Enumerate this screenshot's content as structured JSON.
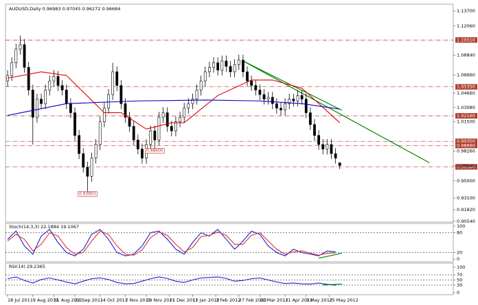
{
  "chart_data": [
    {
      "type": "candlestick",
      "title": "AUDUSD,Daily  0.96983 0.97045 0.96272 0.96684",
      "open": [
        1.06,
        1.066,
        1.08,
        1.095,
        1.1,
        1.075,
        1.05,
        1.02,
        1.04,
        1.035,
        1.05,
        1.06,
        1.065,
        1.055,
        1.05,
        1.035,
        1.025,
        1.0,
        0.98,
        0.965,
        0.955,
        0.975,
        0.99,
        1.015,
        1.03,
        1.045,
        1.07,
        1.055,
        1.035,
        1.02,
        1.01,
        0.995,
        0.985,
        0.975,
        0.99,
        1.005,
        0.995,
        1.02,
        1.025,
        1.01,
        1.005,
        1.015,
        1.02,
        1.03,
        1.035,
        1.04,
        1.05,
        1.06,
        1.07,
        1.075,
        1.08,
        1.072,
        1.082,
        1.076,
        1.07,
        1.078,
        1.083,
        1.07,
        1.06,
        1.055,
        1.05,
        1.045,
        1.04,
        1.042,
        1.035,
        1.03,
        1.028,
        1.035,
        1.04,
        1.038,
        1.044,
        1.04,
        1.025,
        1.012,
        1.0,
        0.99,
        0.985,
        0.99,
        0.98,
        0.96983
      ],
      "high": [
        1.072,
        1.086,
        1.101,
        1.11,
        1.106,
        1.081,
        1.056,
        1.046,
        1.046,
        1.056,
        1.066,
        1.072,
        1.071,
        1.061,
        1.056,
        1.041,
        1.031,
        1.006,
        0.986,
        0.971,
        0.981,
        0.996,
        1.021,
        1.036,
        1.051,
        1.08,
        1.076,
        1.061,
        1.041,
        1.026,
        1.016,
        1.001,
        0.991,
        0.996,
        1.011,
        1.011,
        1.026,
        1.031,
        1.031,
        1.016,
        1.021,
        1.026,
        1.036,
        1.041,
        1.046,
        1.056,
        1.066,
        1.076,
        1.081,
        1.086,
        1.086,
        1.088,
        1.088,
        1.082,
        1.084,
        1.089,
        1.089,
        1.076,
        1.066,
        1.061,
        1.056,
        1.051,
        1.048,
        1.048,
        1.041,
        1.036,
        1.041,
        1.046,
        1.046,
        1.05,
        1.05,
        1.046,
        1.031,
        1.018,
        1.006,
        0.996,
        0.996,
        0.996,
        0.986,
        0.97045
      ],
      "low": [
        1.054,
        1.06,
        1.074,
        1.089,
        1.069,
        1.044,
        0.99,
        1.014,
        1.029,
        1.029,
        1.044,
        1.054,
        1.049,
        1.044,
        1.029,
        1.019,
        0.994,
        0.974,
        0.959,
        0.9385,
        0.949,
        0.969,
        0.984,
        1.009,
        1.024,
        1.039,
        1.049,
        1.029,
        1.014,
        1.004,
        0.989,
        0.979,
        0.969,
        0.969,
        0.984,
        0.986,
        0.989,
        1.014,
        1.004,
        0.999,
        0.999,
        1.009,
        1.014,
        1.024,
        1.029,
        1.034,
        1.044,
        1.054,
        1.064,
        1.069,
        1.066,
        1.066,
        1.07,
        1.064,
        1.064,
        1.072,
        1.064,
        1.054,
        1.049,
        1.044,
        1.039,
        1.034,
        1.034,
        1.029,
        1.024,
        1.022,
        1.022,
        1.029,
        1.032,
        1.032,
        1.034,
        1.019,
        1.006,
        0.994,
        0.984,
        0.979,
        0.979,
        0.974,
        0.969,
        0.96272
      ],
      "close": [
        1.066,
        1.08,
        1.095,
        1.1,
        1.075,
        1.05,
        1.02,
        1.04,
        1.035,
        1.05,
        1.06,
        1.065,
        1.055,
        1.05,
        1.035,
        1.025,
        1.0,
        0.98,
        0.965,
        0.955,
        0.975,
        0.99,
        1.015,
        1.03,
        1.045,
        1.07,
        1.055,
        1.035,
        1.02,
        1.01,
        0.995,
        0.985,
        0.975,
        0.99,
        1.005,
        0.995,
        1.02,
        1.025,
        1.01,
        1.005,
        1.015,
        1.02,
        1.03,
        1.035,
        1.04,
        1.05,
        1.06,
        1.07,
        1.075,
        1.08,
        1.072,
        1.082,
        1.076,
        1.07,
        1.078,
        1.083,
        1.07,
        1.06,
        1.055,
        1.05,
        1.045,
        1.04,
        1.042,
        1.035,
        1.03,
        1.028,
        1.035,
        1.04,
        1.038,
        1.044,
        1.04,
        1.025,
        1.012,
        1.0,
        0.99,
        0.985,
        0.99,
        0.98,
        0.975,
        0.96684
      ],
      "xlim": [
        -0.5,
        106
      ],
      "ylim": [
        0.9046,
        1.1446
      ],
      "yticks": [
        {
          "value": 1.137,
          "label": "1.13700"
        },
        {
          "value": 1.1206,
          "label": "1.12060"
        },
        {
          "value": 1.0884,
          "label": "1.08840"
        },
        {
          "value": 1.0666,
          "label": "1.06660"
        },
        {
          "value": 1.0466,
          "label": "1.04660"
        },
        {
          "value": 1.0308,
          "label": "1.03080"
        },
        {
          "value": 1.015,
          "label": "1.01500"
        },
        {
          "value": 0.9826,
          "label": "0.98260"
        },
        {
          "value": 0.9664,
          "label": "0.96640"
        },
        {
          "value": 0.95,
          "label": "0.95000"
        },
        {
          "value": 0.931,
          "label": "0.93100"
        },
        {
          "value": 0.9182,
          "label": "0.91820"
        },
        {
          "value": 0.9054,
          "label": "0.90540"
        }
      ],
      "xticks": [
        {
          "value": 0,
          "label": "18 Jul 2011"
        },
        {
          "value": 6,
          "label": "9 Aug 2011"
        },
        {
          "value": 11,
          "label": "31 Aug 2011"
        },
        {
          "value": 16,
          "label": "22 Sep 2011"
        },
        {
          "value": 22,
          "label": "14 Oct 2011"
        },
        {
          "value": 28,
          "label": "7 Nov 2011"
        },
        {
          "value": 33,
          "label": "29 Nov 2011"
        },
        {
          "value": 38.5,
          "label": "21 Dec 2011"
        },
        {
          "value": 44,
          "label": "12 Jan 2012"
        },
        {
          "value": 49.5,
          "label": "3 Feb 2012"
        },
        {
          "value": 55,
          "label": "27 Feb 2012"
        },
        {
          "value": 60,
          "label": "20 Mar 2012"
        },
        {
          "value": 66,
          "label": "11 Apr 2012"
        },
        {
          "value": 71,
          "label": "3 May 2012"
        },
        {
          "value": 76.5,
          "label": "25 May 2012"
        }
      ],
      "lines": [
        {
          "color": "#e00000",
          "x": [
            0,
            8,
            14,
            23,
            27,
            33,
            39,
            42,
            50,
            58,
            63,
            70,
            79
          ],
          "values": [
            1.063,
            1.07,
            1.066,
            1.025,
            1.025,
            1.007,
            1.014,
            1.014,
            1.044,
            1.061,
            1.061,
            1.052,
            1.014
          ]
        },
        {
          "color": "#0000c8",
          "x": [
            0,
            14,
            31,
            47,
            60,
            70,
            79
          ],
          "values": [
            1.022,
            1.035,
            1.038,
            1.039,
            1.038,
            1.035,
            1.029
          ]
        }
      ],
      "trendlines": [
        {
          "color": "#008000",
          "x": [
            56,
            100.3
          ],
          "values": [
            1.082,
            0.97
          ]
        },
        {
          "color": "#008000",
          "x": [
            56,
            79.5
          ],
          "values": [
            1.082,
            1.0277
          ]
        }
      ],
      "levels": [
        {
          "value": 1.1051,
          "label": "1.10510"
        },
        {
          "value": 1.0535,
          "label": "1.05350"
        },
        {
          "value": 1.0216,
          "label": "1.02160"
        },
        {
          "value": 0.9935,
          "label": "0.99350"
        },
        {
          "value": 0.9889,
          "label": "0.98890"
        },
        {
          "value": 0.9654,
          "label": "0.96540"
        }
      ],
      "annotations": [
        {
          "x": 19,
          "value": 0.9385,
          "label": "0.93850"
        },
        {
          "x": 35,
          "value": 0.986,
          "label": "0.98600"
        }
      ]
    },
    {
      "type": "line",
      "title": "Stoch(14,3,3) 22.1884 19.1067",
      "x": [
        0,
        2,
        4,
        6,
        8,
        10,
        12,
        14,
        16,
        18,
        20,
        22,
        24,
        26,
        28,
        30,
        32,
        34,
        36,
        38,
        40,
        42,
        44,
        46,
        48,
        50,
        52,
        54,
        56,
        58,
        60,
        62,
        64,
        66,
        68,
        70,
        72,
        74,
        76,
        78
      ],
      "series": [
        {
          "color": "#1f1fd0",
          "values": [
            60,
            85,
            40,
            15,
            70,
            90,
            50,
            20,
            10,
            30,
            75,
            90,
            60,
            20,
            10,
            15,
            40,
            80,
            85,
            60,
            30,
            15,
            50,
            80,
            70,
            90,
            60,
            30,
            55,
            85,
            75,
            40,
            20,
            10,
            30,
            20,
            15,
            10,
            25,
            22.1884
          ]
        },
        {
          "color": "#e03030",
          "values": [
            55,
            75,
            60,
            25,
            45,
            80,
            70,
            35,
            15,
            20,
            55,
            85,
            75,
            40,
            15,
            12,
            28,
            65,
            82,
            72,
            45,
            22,
            35,
            68,
            72,
            82,
            72,
            45,
            45,
            72,
            80,
            55,
            30,
            15,
            22,
            25,
            18,
            12,
            18,
            19.1067
          ]
        }
      ],
      "xlim": [
        -0.5,
        106
      ],
      "ylim": [
        -8,
        108
      ],
      "yticks": [
        100,
        80,
        20,
        0
      ],
      "levels": [
        80,
        20
      ],
      "trendlines": [
        {
          "color": "#008000",
          "x": [
            74,
            79.5
          ],
          "values": [
            3,
            18
          ]
        }
      ]
    },
    {
      "type": "line",
      "title": "RSI(14) 29.2365",
      "x": [
        0,
        2,
        4,
        6,
        8,
        10,
        12,
        14,
        16,
        18,
        20,
        22,
        24,
        26,
        28,
        30,
        32,
        34,
        36,
        38,
        40,
        42,
        44,
        46,
        48,
        50,
        52,
        54,
        56,
        58,
        60,
        62,
        64,
        66,
        68,
        70,
        72,
        74,
        76,
        78
      ],
      "series": [
        {
          "color": "#1f1fd0",
          "values": [
            55,
            62,
            48,
            38,
            52,
            58,
            50,
            42,
            35,
            45,
            55,
            58,
            52,
            40,
            35,
            36,
            45,
            55,
            62,
            56,
            45,
            40,
            50,
            58,
            60,
            62,
            56,
            45,
            48,
            55,
            58,
            50,
            42,
            36,
            38,
            35,
            34,
            38,
            33,
            29.2365
          ]
        }
      ],
      "xlim": [
        -0.5,
        106
      ],
      "ylim": [
        -8,
        116
      ],
      "yticks": [
        100,
        70,
        50,
        30,
        0
      ],
      "levels": [
        70,
        50,
        30
      ],
      "trendlines": [
        {
          "color": "#008000",
          "x": [
            75,
            79.5
          ],
          "values": [
            30,
            34
          ]
        }
      ]
    }
  ]
}
